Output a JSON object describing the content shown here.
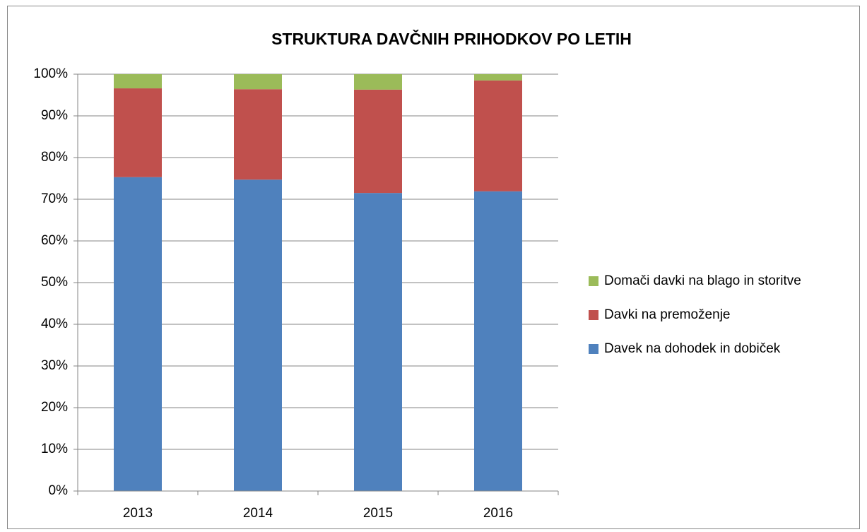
{
  "chart_data": {
    "type": "stacked_bar",
    "title": "STRUKTURA DAVČNIH PRIHODKOV PO LETIH",
    "categories": [
      "2013",
      "2014",
      "2015",
      "2016"
    ],
    "series": [
      {
        "name": "Davek na dohodek in dobiček",
        "color": "#4f81bd",
        "values": [
          75.3,
          74.7,
          71.5,
          71.9
        ]
      },
      {
        "name": "Davki na premoženje",
        "color": "#c0504d",
        "values": [
          21.3,
          21.7,
          24.8,
          26.6
        ]
      },
      {
        "name": "Domači davki na blago in storitve",
        "color": "#9bbb59",
        "values": [
          3.4,
          3.6,
          3.7,
          1.5
        ]
      }
    ],
    "ylim": [
      0,
      100
    ],
    "yticks": [
      {
        "value": 0,
        "label": "0%"
      },
      {
        "value": 10,
        "label": "10%"
      },
      {
        "value": 20,
        "label": "20%"
      },
      {
        "value": 30,
        "label": "30%"
      },
      {
        "value": 40,
        "label": "40%"
      },
      {
        "value": 50,
        "label": "50%"
      },
      {
        "value": 60,
        "label": "60%"
      },
      {
        "value": 70,
        "label": "70%"
      },
      {
        "value": 80,
        "label": "80%"
      },
      {
        "value": 90,
        "label": "90%"
      },
      {
        "value": 100,
        "label": "100%"
      }
    ],
    "grid": true,
    "legend": "right"
  }
}
